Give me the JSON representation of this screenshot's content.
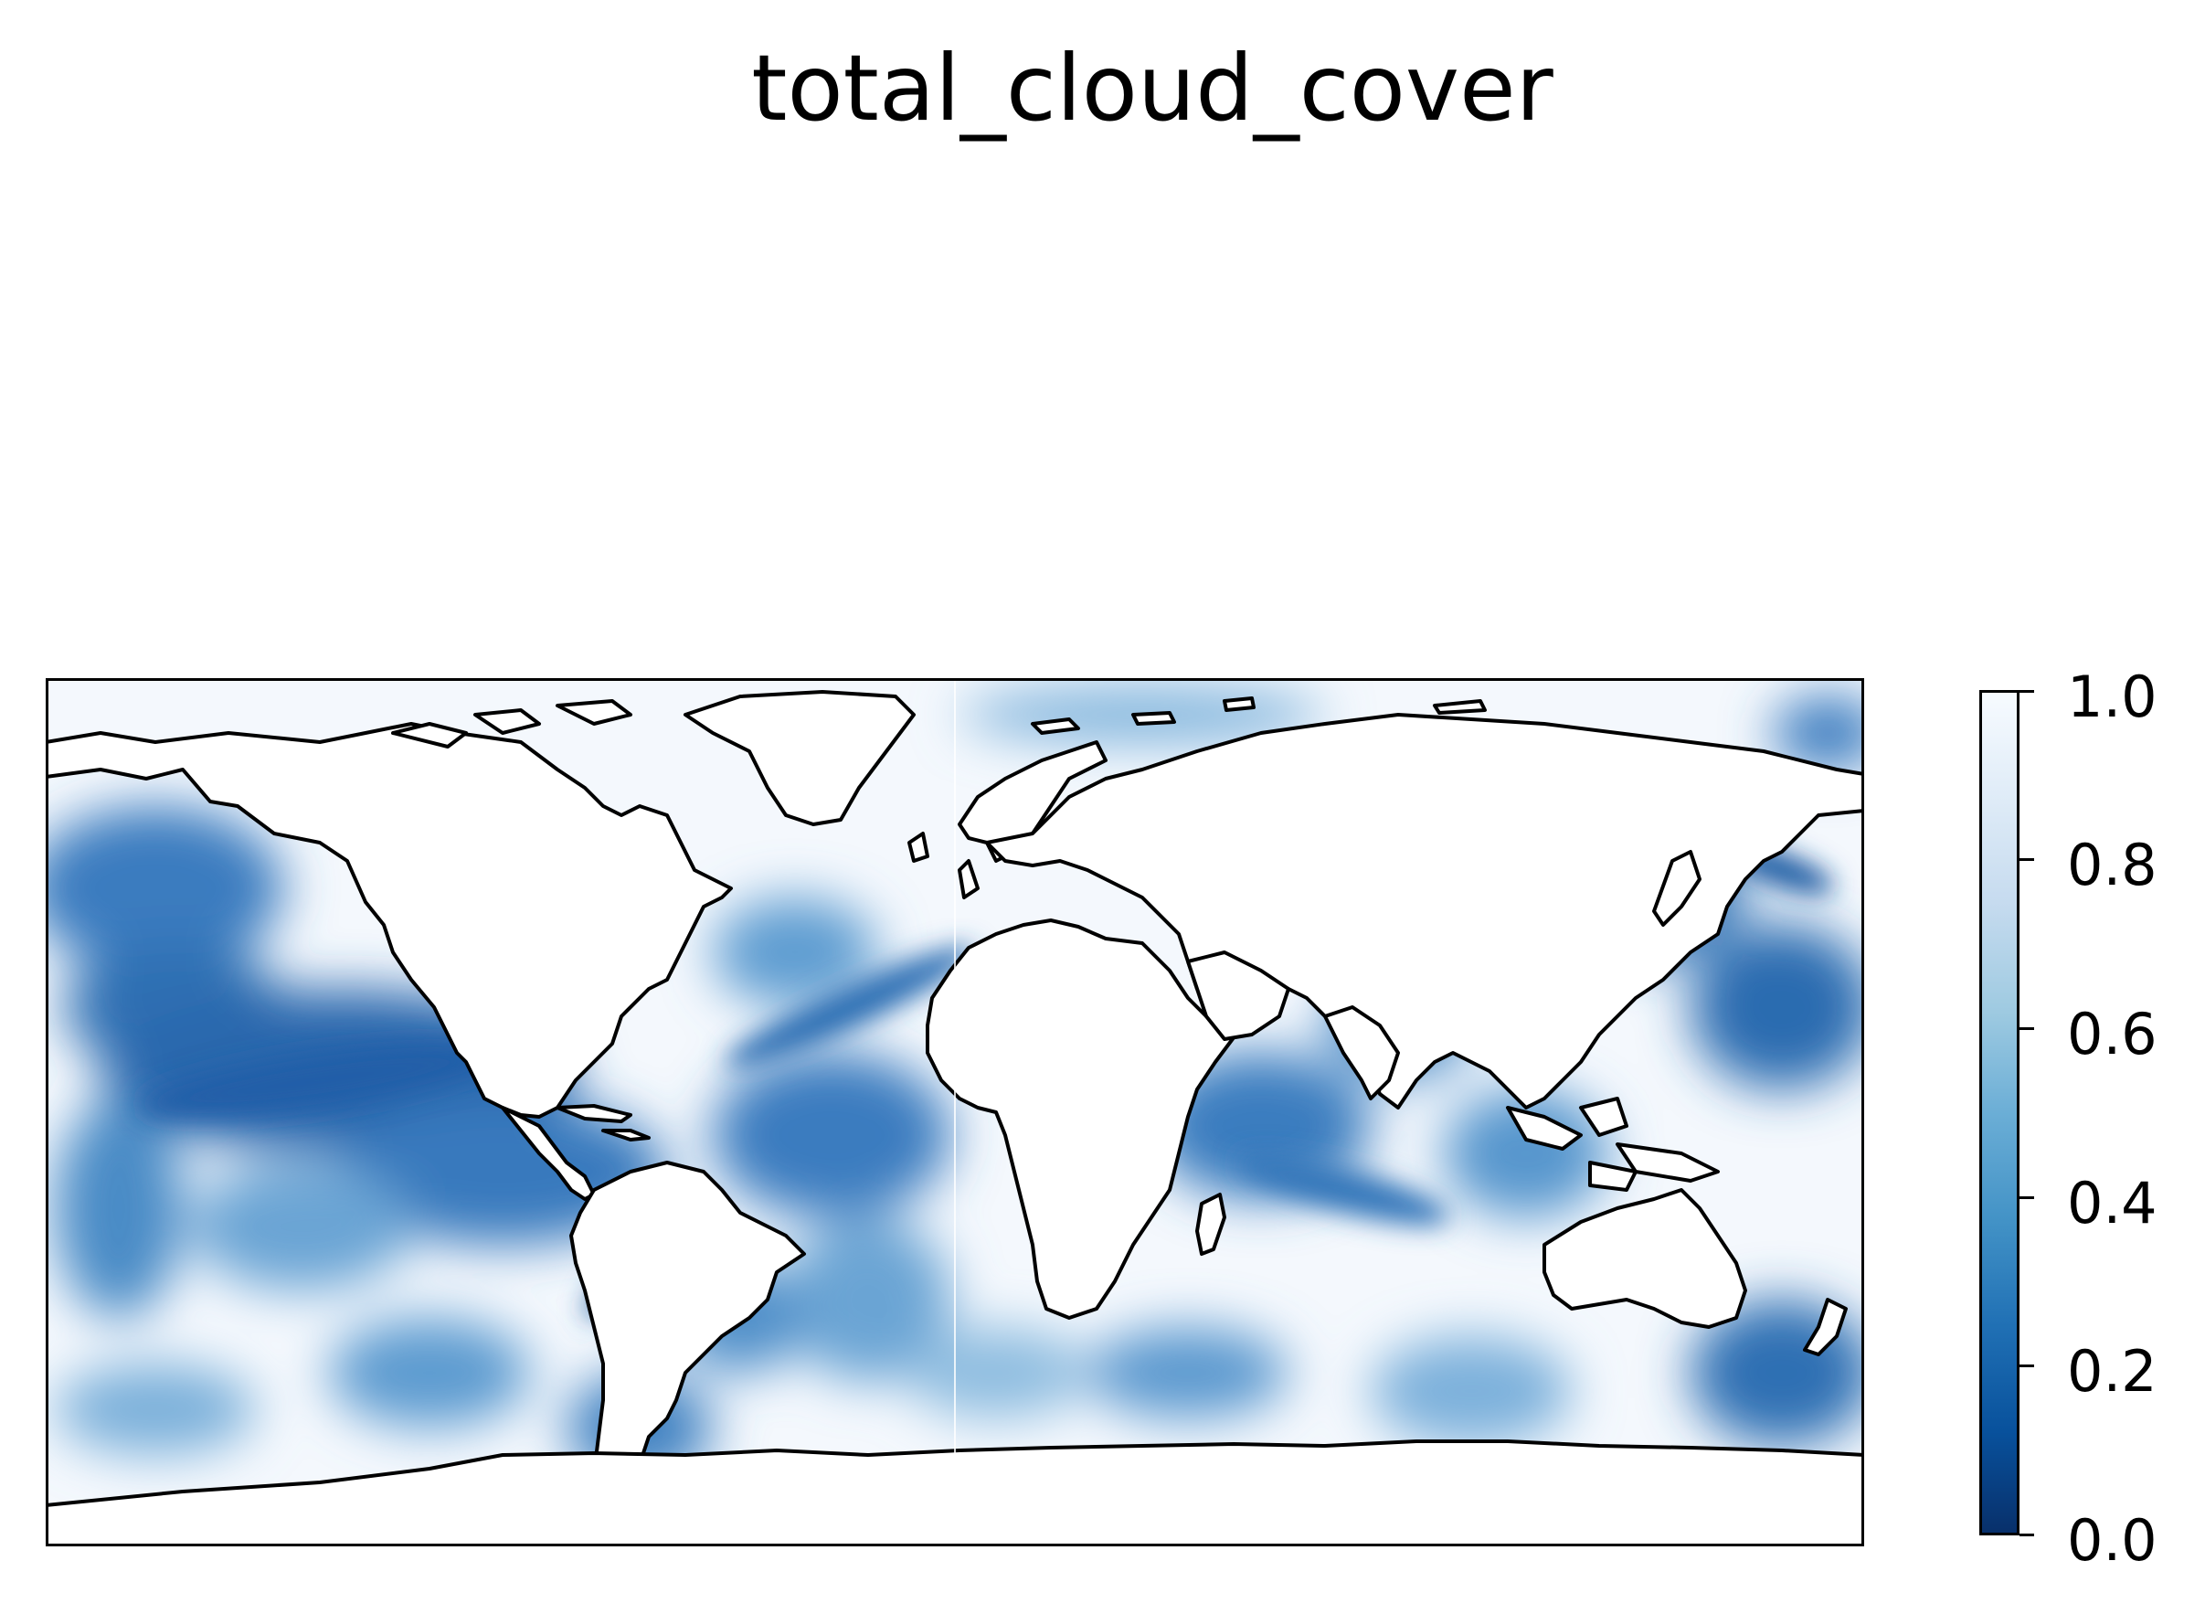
{
  "title": "total_cloud_cover",
  "colorbar": {
    "colormap": "Blues_r",
    "colors": [
      "#08306b",
      "#08519c",
      "#2171b5",
      "#4292c6",
      "#6baed6",
      "#9ecae1",
      "#c6dbef",
      "#deebf7",
      "#f7fbff"
    ],
    "range": [
      0.0,
      1.0
    ],
    "ticks": [
      "0.0",
      "0.2",
      "0.4",
      "0.6",
      "0.8",
      "1.0"
    ]
  },
  "map": {
    "projection": "PlateCarree",
    "extent": {
      "lon": [
        -180,
        180
      ],
      "lat": [
        -90,
        90
      ]
    },
    "coastlines": true,
    "land_masked": true,
    "field": "total_cloud_cover"
  }
}
